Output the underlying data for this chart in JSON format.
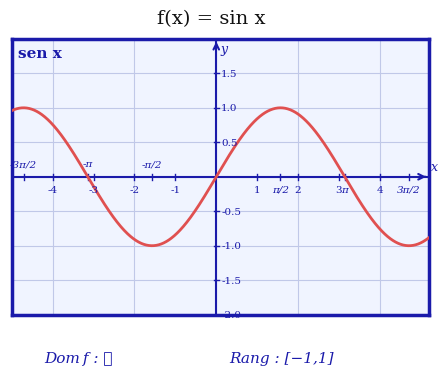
{
  "title": "f(x) = sin x",
  "curve_label": "sen x",
  "dom_text": "Dom f : ℝ",
  "rang_text": "Rang : [−1,1]",
  "xlim": [
    -5.0,
    5.2
  ],
  "ylim": [
    -2.0,
    2.0
  ],
  "x_special_ticks": [
    -4.712,
    -3.14159,
    -1.5708,
    1.5708,
    3.14159,
    4.712
  ],
  "x_special_labels": [
    "-3π/2",
    "-π",
    "-π/2",
    "π/2",
    "π",
    "3π/2"
  ],
  "x_numeric_ticks": [
    -4,
    -3,
    -2,
    -1,
    1,
    2,
    3,
    4
  ],
  "y_ticks": [
    -2.0,
    -1.5,
    -1.0,
    -0.5,
    0.5,
    1.0,
    1.5
  ],
  "background_color": "#ffffff",
  "plot_bg_color": "#f0f4ff",
  "border_color": "#1a1aaa",
  "grid_color": "#c0c8e8",
  "curve_color": "#e05050",
  "axis_color": "#1a1aaa",
  "label_color": "#1a1aaa",
  "title_color": "#111111",
  "curve_linewidth": 2.0,
  "axis_linewidth": 1.5,
  "border_linewidth": 2.5
}
